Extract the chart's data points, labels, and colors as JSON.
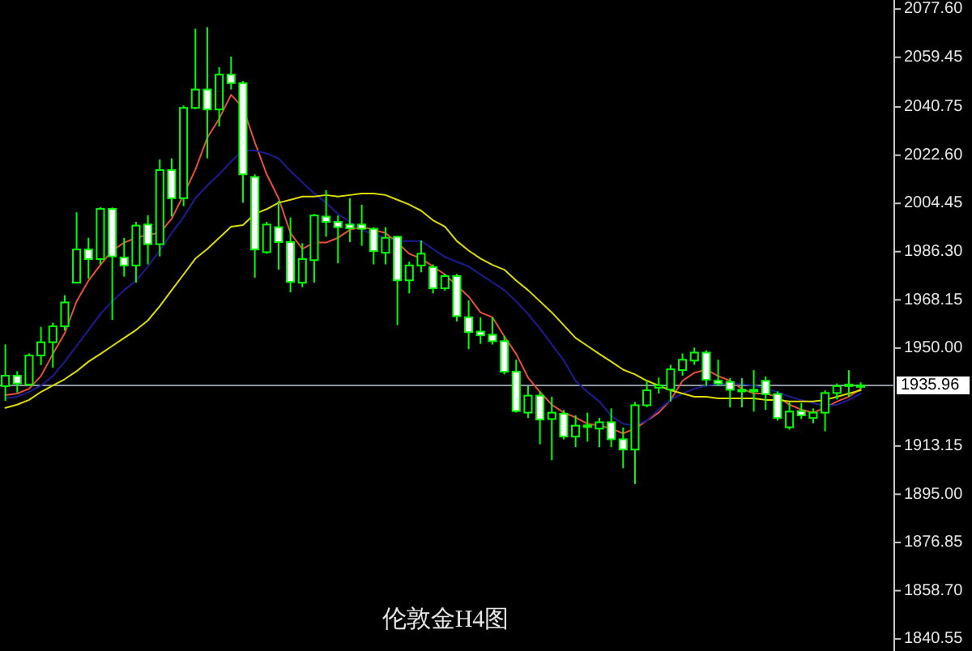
{
  "chart_data": {
    "type": "candlestick",
    "title": "伦敦金H4图",
    "categories": [
      null,
      null,
      null,
      null,
      null,
      null,
      null,
      null,
      null,
      null,
      null,
      null,
      null,
      null,
      null,
      null,
      null,
      null,
      null,
      null,
      null,
      null,
      null,
      null,
      null,
      null,
      null,
      null,
      null,
      null,
      null,
      null,
      null,
      null,
      null,
      null,
      null,
      null,
      null,
      null,
      null,
      null,
      null,
      null,
      null,
      null,
      null,
      null,
      null,
      null,
      null,
      null,
      null,
      null,
      null,
      null,
      null,
      null,
      null,
      null,
      null,
      null,
      null,
      null,
      null,
      null,
      null,
      null,
      null,
      null,
      null,
      null,
      null
    ],
    "ohlc": [
      [
        1935.7,
        1951.4,
        1930.1,
        1939.6
      ],
      [
        1939.6,
        1941.3,
        1933.3,
        1936.7
      ],
      [
        1936.3,
        1948.0,
        1935.7,
        1947.2
      ],
      [
        1947.2,
        1958.0,
        1943.6,
        1952.2
      ],
      [
        1952.2,
        1959.6,
        1942.6,
        1958.2
      ],
      [
        1958.2,
        1969.9,
        1956.6,
        1967.2
      ],
      [
        1974.6,
        2001.1,
        1974.6,
        1987.1
      ],
      [
        1987.1,
        1991.5,
        1976.1,
        1983.5
      ],
      [
        1983.5,
        2003.0,
        1981.5,
        2002.4
      ],
      [
        2002.4,
        2002.9,
        1960.6,
        1984.5
      ],
      [
        1984.1,
        1991.5,
        1976.9,
        1981.1
      ],
      [
        1981.1,
        1997.5,
        1974.6,
        1996.1
      ],
      [
        1996.5,
        2000.0,
        1981.5,
        1989.1
      ],
      [
        1989.1,
        2021.0,
        1984.5,
        2017.0
      ],
      [
        2017.0,
        2021.4,
        1999.5,
        2006.4
      ],
      [
        2006.4,
        2041.3,
        2003.4,
        2040.4
      ],
      [
        2040.4,
        2070.2,
        2039.9,
        2047.3
      ],
      [
        2047.3,
        2070.8,
        2021.4,
        2039.8
      ],
      [
        2039.8,
        2055.7,
        2033.4,
        2052.9
      ],
      [
        2052.9,
        2059.7,
        2047.3,
        2049.7
      ],
      [
        2049.7,
        2050.5,
        2004.7,
        2015.4
      ],
      [
        2014.4,
        2015.4,
        1976.5,
        1987.1
      ],
      [
        1986.1,
        1997.5,
        1985.5,
        1996.5
      ],
      [
        1995.5,
        2005.4,
        1979.5,
        1989.9
      ],
      [
        1989.9,
        1999.1,
        1971.0,
        1974.9
      ],
      [
        1974.6,
        1989.5,
        1972.9,
        1983.5
      ],
      [
        1983.1,
        2000.5,
        1974.6,
        1999.9
      ],
      [
        1999.5,
        2009.4,
        1991.9,
        1997.5
      ],
      [
        1997.5,
        1999.9,
        1981.9,
        1995.5
      ],
      [
        1996.5,
        2006.4,
        1989.9,
        1995.1
      ],
      [
        1996.5,
        2003.9,
        1988.5,
        1994.9
      ],
      [
        1994.9,
        1995.5,
        1981.5,
        1986.5
      ],
      [
        1985.9,
        1995.5,
        1981.5,
        1991.5
      ],
      [
        1991.9,
        1992.3,
        1958.6,
        1975.5
      ],
      [
        1975.5,
        1982.5,
        1970.6,
        1981.1
      ],
      [
        1981.1,
        1990.5,
        1978.5,
        1985.5
      ],
      [
        1980.5,
        1981.5,
        1970.6,
        1972.5
      ],
      [
        1972.5,
        1977.9,
        1971.6,
        1977.1
      ],
      [
        1977.1,
        1977.9,
        1960.0,
        1962.0
      ],
      [
        1961.6,
        1968.0,
        1949.6,
        1956.0
      ],
      [
        1956.2,
        1961.6,
        1951.6,
        1954.8
      ],
      [
        1955.0,
        1961.6,
        1951.3,
        1952.6
      ],
      [
        1952.6,
        1954.6,
        1940.1,
        1941.1
      ],
      [
        1941.1,
        1945.6,
        1925.7,
        1926.3
      ],
      [
        1925.7,
        1935.7,
        1923.7,
        1932.1
      ],
      [
        1932.1,
        1933.7,
        1913.8,
        1923.1
      ],
      [
        1923.3,
        1931.7,
        1907.8,
        1925.7
      ],
      [
        1925.3,
        1926.7,
        1915.7,
        1916.7
      ],
      [
        1916.7,
        1924.7,
        1912.7,
        1920.8
      ],
      [
        1920.3,
        1925.7,
        1914.8,
        1920.9
      ],
      [
        1919.7,
        1923.7,
        1912.7,
        1922.1
      ],
      [
        1922.1,
        1927.3,
        1912.7,
        1915.7
      ],
      [
        1915.7,
        1920.1,
        1904.8,
        1911.8
      ],
      [
        1911.8,
        1929.7,
        1898.8,
        1928.5
      ],
      [
        1928.5,
        1937.7,
        1927.7,
        1934.1
      ],
      [
        1935.1,
        1938.9,
        1932.9,
        1936.0
      ],
      [
        1934.4,
        1943.7,
        1929.9,
        1942.0
      ],
      [
        1941.7,
        1948.0,
        1939.6,
        1945.6
      ],
      [
        1945.3,
        1950.2,
        1943.7,
        1948.3
      ],
      [
        1948.3,
        1949.2,
        1935.7,
        1938.1
      ],
      [
        1937.7,
        1945.6,
        1935.7,
        1936.7
      ],
      [
        1937.3,
        1938.7,
        1927.7,
        1934.3
      ],
      [
        1934.3,
        1938.7,
        1927.7,
        1933.7
      ],
      [
        1933.7,
        1941.7,
        1926.1,
        1934.3
      ],
      [
        1937.7,
        1939.3,
        1926.7,
        1932.7
      ],
      [
        1932.7,
        1933.7,
        1922.7,
        1923.7
      ],
      [
        1920.2,
        1929.7,
        1919.3,
        1926.1
      ],
      [
        1926.3,
        1929.3,
        1923.3,
        1924.7
      ],
      [
        1923.7,
        1927.3,
        1921.7,
        1925.7
      ],
      [
        1925.7,
        1934.1,
        1918.7,
        1933.1
      ],
      [
        1933.1,
        1936.7,
        1930.7,
        1935.7
      ],
      [
        1935.7,
        1941.7,
        1931.7,
        1936.3
      ],
      [
        1935.7,
        1937.1,
        1934.6,
        1936.0
      ]
    ],
    "color": "#00ff00",
    "colors": [
      "#000000",
      "#ffffff",
      "#000000",
      "#000000",
      "#000000",
      "#000000",
      "#000000",
      "#ffffff",
      "#000000",
      "#ffffff",
      "#ffffff",
      "#000000",
      "#ffffff",
      "#000000",
      "#ffffff",
      "#000000",
      "#000000",
      "#ffffff",
      "#000000",
      "#ffffff",
      "#ffffff",
      "#ffffff",
      "#000000",
      "#ffffff",
      "#ffffff",
      "#000000",
      "#000000",
      "#ffffff",
      "#ffffff",
      "#ffffff",
      "#ffffff",
      "#ffffff",
      "#000000",
      "#ffffff",
      "#000000",
      "#000000",
      "#ffffff",
      "#000000",
      "#ffffff",
      "#ffffff",
      "#ffffff",
      "#ffffff",
      "#ffffff",
      "#ffffff",
      "#000000",
      "#ffffff",
      "#000000",
      "#ffffff",
      "#000000",
      "#000000",
      "#000000",
      "#ffffff",
      "#ffffff",
      "#000000",
      "#000000",
      "#000000",
      "#000000",
      "#000000",
      "#000000",
      "#ffffff",
      "#ffffff",
      "#ffffff",
      "#ffffff",
      "#000000",
      "#ffffff",
      "#ffffff",
      "#000000",
      "#ffffff",
      "#000000",
      "#000000",
      "#000000",
      "#000000",
      "#000000"
    ],
    "series": [
      {
        "type": "line",
        "color": "#e8503c",
        "values": [
          1932.3,
          1932.9,
          1934.7,
          1939.5,
          1947.8,
          1955.6,
          1967.6,
          1975.4,
          1981.3,
          1986.7,
          1989.7,
          1991.5,
          1992.7,
          1993.3,
          1998.7,
          2007.6,
          2017.2,
          2029.2,
          2036.3,
          2045.3,
          2040.5,
          2027.4,
          2015.4,
          2006.4,
          1993.3,
          1987.3,
          1989.7,
          1989.7,
          1991.5,
          1994.5,
          1995.7,
          1994.5,
          1993.3,
          1989.7,
          1985.5,
          1983.7,
          1980.7,
          1977.7,
          1973.5,
          1969.4,
          1963.4,
          1961.6,
          1954.4,
          1947.8,
          1938.9,
          1933.5,
          1928.7,
          1925.7,
          1923.9,
          1921.5,
          1920.9,
          1919.7,
          1917.9,
          1919.7,
          1922.7,
          1925.7,
          1930.5,
          1937.7,
          1940.7,
          1941.9,
          1939.5,
          1937.7,
          1934.7,
          1932.9,
          1932.9,
          1931.7,
          1928.7,
          1926.9,
          1925.7,
          1927.5,
          1929.9,
          1931.7,
          1934.7
        ]
      },
      {
        "type": "line",
        "color": "#1c1c96",
        "values": [
          1931.1,
          1931.7,
          1933.5,
          1935.9,
          1939.5,
          1944.9,
          1950.8,
          1956.8,
          1962.8,
          1967.6,
          1971.8,
          1975.4,
          1980.7,
          1986.7,
          1993.3,
          1999.3,
          2006.4,
          2011.2,
          2015.4,
          2020.2,
          2024.4,
          2024.4,
          2023.2,
          2021.4,
          2016.6,
          2012.4,
          2008.2,
          2004.7,
          2000.5,
          1997.5,
          1994.5,
          1992.7,
          1991.5,
          1990.3,
          1990.3,
          1990.3,
          1987.3,
          1984.3,
          1982.5,
          1980.7,
          1977.7,
          1974.8,
          1971.8,
          1967.6,
          1962.8,
          1957.4,
          1951.4,
          1945.4,
          1937.7,
          1933.5,
          1929.9,
          1924.5,
          1921.5,
          1920.9,
          1922.7,
          1926.9,
          1930.5,
          1932.9,
          1934.7,
          1935.9,
          1936.5,
          1936.5,
          1936.5,
          1935.9,
          1934.7,
          1933.5,
          1931.7,
          1930.5,
          1929.3,
          1928.1,
          1928.7,
          1930.5,
          1932.9
        ]
      },
      {
        "type": "line",
        "color": "#dcdc00",
        "values": [
          1927.5,
          1928.7,
          1930.5,
          1933.5,
          1935.9,
          1938.3,
          1941.3,
          1944.9,
          1947.8,
          1950.8,
          1953.8,
          1956.8,
          1960.4,
          1965.8,
          1971.8,
          1977.7,
          1983.7,
          1987.3,
          1991.5,
          1995.7,
          1996.3,
          2000.5,
          2002.3,
          2004.7,
          2005.8,
          2007.0,
          2007.0,
          2007.6,
          2007.0,
          2007.6,
          2008.2,
          2008.2,
          2007.6,
          2005.8,
          2004.0,
          2001.7,
          1998.1,
          1995.7,
          1990.3,
          1986.7,
          1983.7,
          1981.3,
          1979.5,
          1975.4,
          1971.8,
          1967.6,
          1963.4,
          1958.6,
          1953.8,
          1950.8,
          1947.8,
          1944.9,
          1941.9,
          1940.1,
          1937.7,
          1935.9,
          1934.1,
          1932.9,
          1931.7,
          1931.7,
          1931.1,
          1931.1,
          1931.1,
          1931.1,
          1930.5,
          1930.5,
          1929.9,
          1929.9,
          1929.9,
          1930.5,
          1931.7,
          1932.9,
          1934.1
        ]
      }
    ],
    "ylim": [
      1836,
      2081
    ],
    "yticks": [
      {
        "value": 2077.6,
        "label": "2077.60"
      },
      {
        "value": 2059.45,
        "label": "2059.45"
      },
      {
        "value": 2040.75,
        "label": "2040.75"
      },
      {
        "value": 2022.6,
        "label": "2022.60"
      },
      {
        "value": 2004.45,
        "label": "2004.45"
      },
      {
        "value": 1986.3,
        "label": "1986.30"
      },
      {
        "value": 1968.15,
        "label": "1968.15"
      },
      {
        "value": 1950.0,
        "label": "1950.00"
      },
      {
        "value": 1913.15,
        "label": "1913.15"
      },
      {
        "value": 1895.0,
        "label": "1895.00"
      },
      {
        "value": 1876.85,
        "label": "1876.85"
      },
      {
        "value": 1858.7,
        "label": "1858.70"
      },
      {
        "value": 1840.55,
        "label": "1840.55"
      }
    ],
    "ref_lines": [
      {
        "axis": "y",
        "value": 1935.96,
        "label": "1935.96",
        "color": "#8c96a0"
      }
    ]
  }
}
